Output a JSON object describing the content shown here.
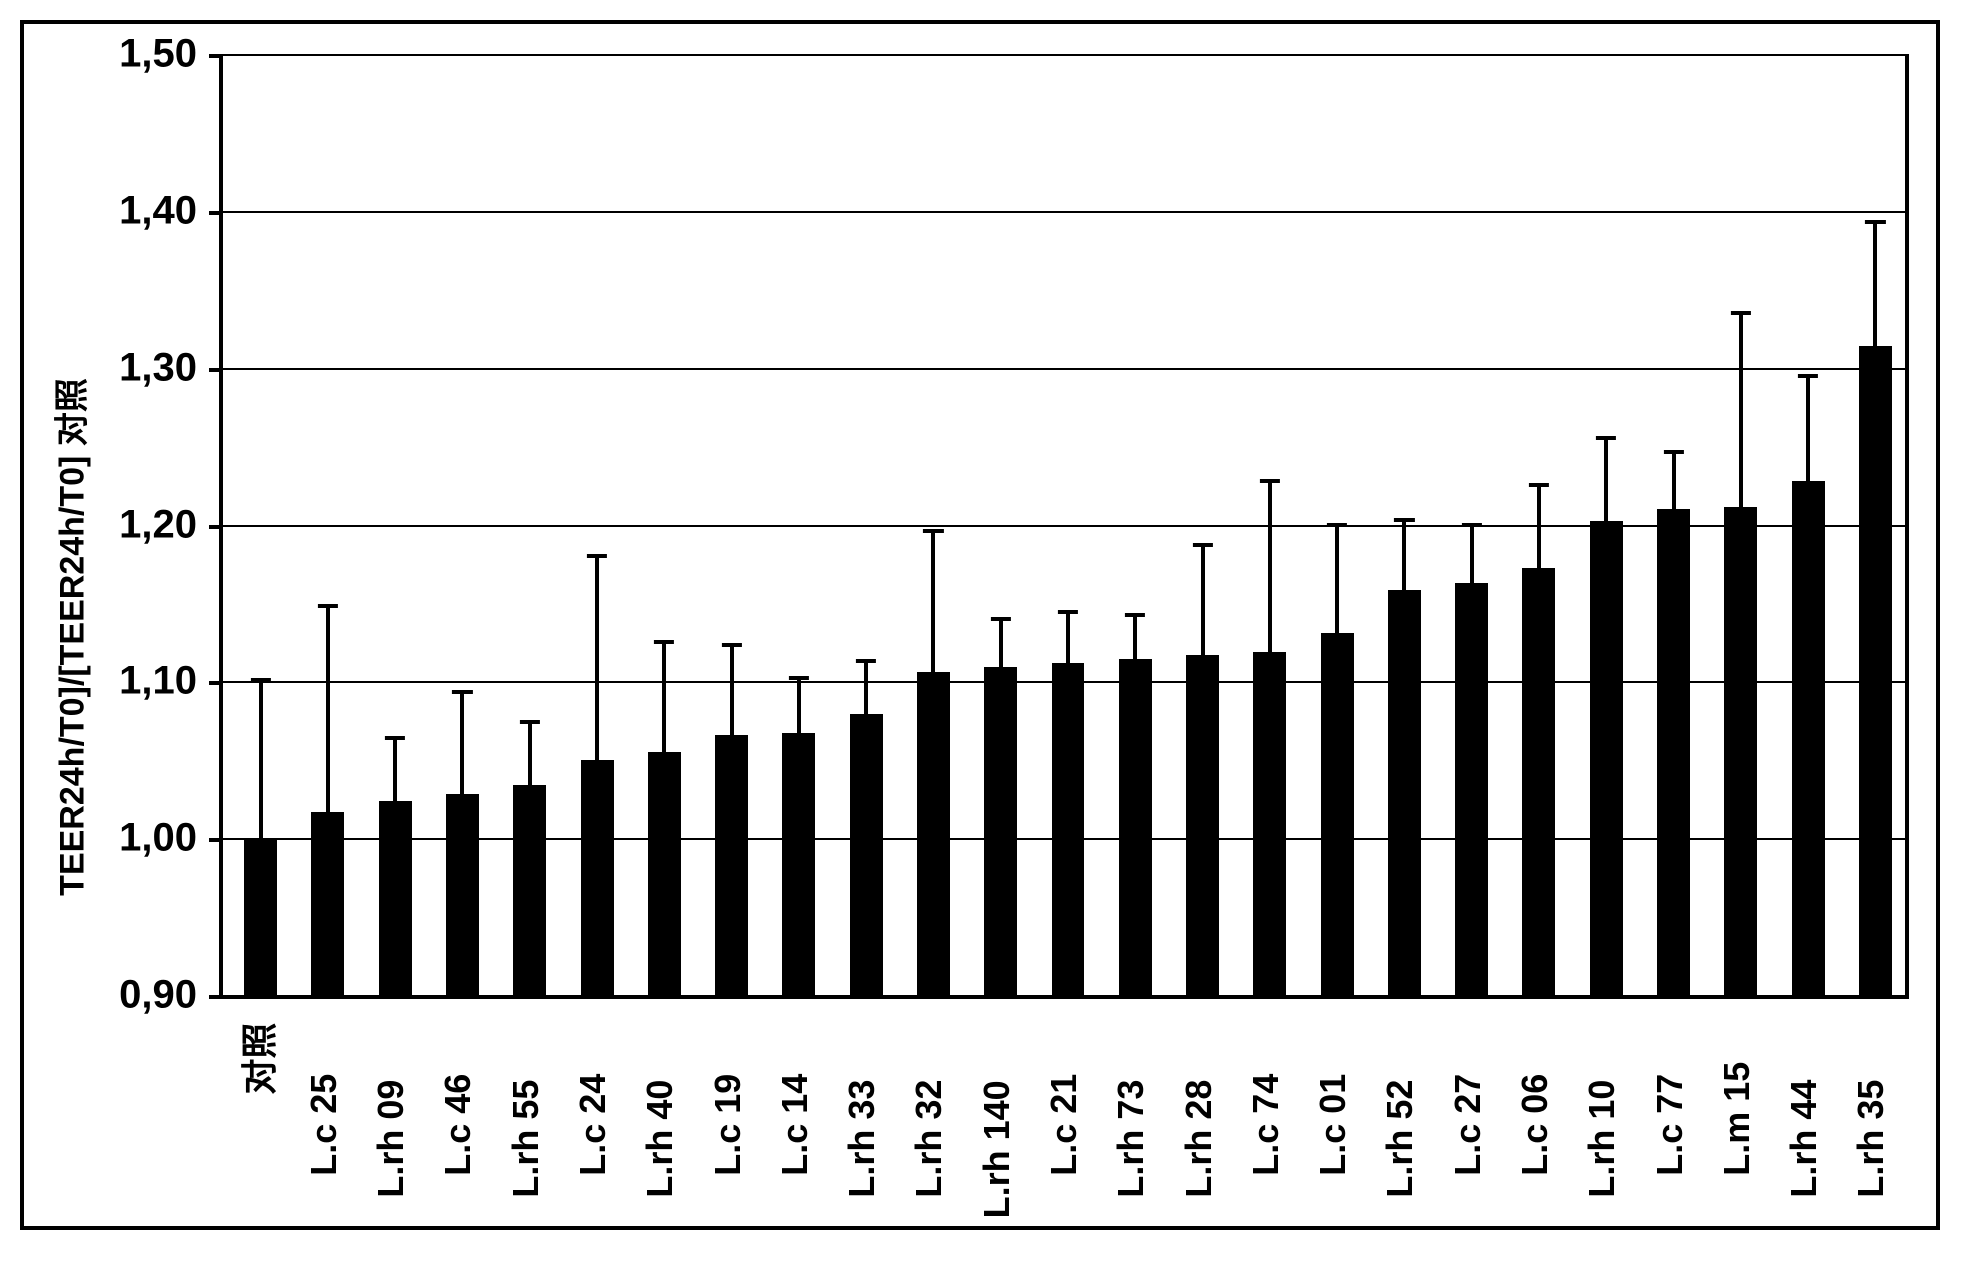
{
  "chart": {
    "type": "bar",
    "background_color": "#ffffff",
    "frame_color": "#000000",
    "axis_color": "#000000",
    "grid_color": "#000000",
    "bar_color": "#000000",
    "error_color": "#000000",
    "ylabel": "TEER24h/T0]/[TEER24h/T0] 对照",
    "ylabel_fontsize": 34,
    "tick_fontsize": 40,
    "xlabel_fontsize": 36,
    "ylim": [
      0.9,
      1.5
    ],
    "yticks": [
      0.9,
      1.0,
      1.1,
      1.2,
      1.3,
      1.4,
      1.5
    ],
    "ytick_labels": [
      "0,90",
      "1,00",
      "1,10",
      "1,20",
      "1,30",
      "1,40",
      "1,50"
    ],
    "bar_width": 0.49,
    "error_cap_width": 0.3,
    "error_stem_width": 4,
    "categories": [
      "对照",
      "L.c 25",
      "L.rh 09",
      "L.c 46",
      "L.rh 55",
      "L.c 24",
      "L.rh 40",
      "L.c 19",
      "L.c 14",
      "L.rh 33",
      "L.rh 32",
      "L.rh 140",
      "L.c 21",
      "L.rh 73",
      "L.rh 28",
      "L.c 74",
      "L.c 01",
      "L.rh 52",
      "L.c 27",
      "L.c 06",
      "L.rh 10",
      "L.c 77",
      "L.m 15",
      "L.rh 44",
      "L.rh 35"
    ],
    "values": [
      1.0,
      1.017,
      1.024,
      1.028,
      1.034,
      1.05,
      1.055,
      1.066,
      1.067,
      1.079,
      1.106,
      1.109,
      1.112,
      1.114,
      1.117,
      1.119,
      1.131,
      1.158,
      1.163,
      1.172,
      1.202,
      1.21,
      1.211,
      1.228,
      1.314
    ],
    "errors": [
      0.101,
      0.131,
      0.04,
      0.065,
      0.04,
      0.13,
      0.07,
      0.057,
      0.035,
      0.034,
      0.09,
      0.031,
      0.032,
      0.028,
      0.07,
      0.109,
      0.069,
      0.045,
      0.037,
      0.053,
      0.053,
      0.036,
      0.124,
      0.067,
      0.079
    ]
  }
}
